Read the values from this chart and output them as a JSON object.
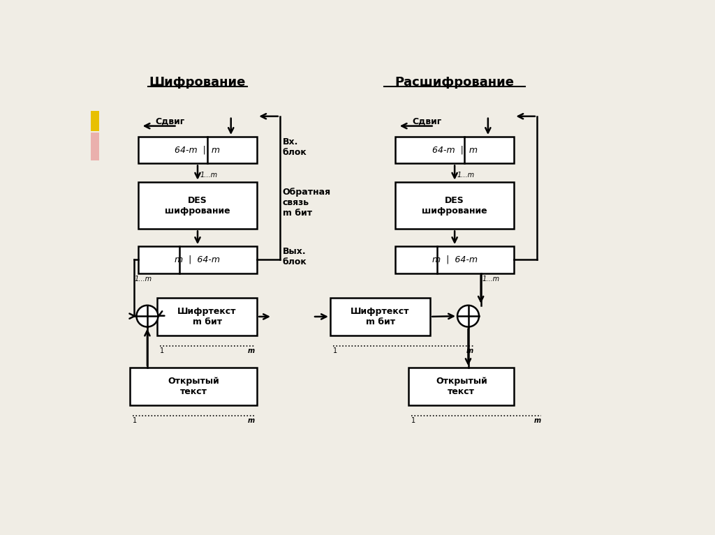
{
  "bg_color": "#f0ede5",
  "title_left": "Шифрование",
  "title_right": "Расшифрование",
  "left": {
    "shift_label": "Сдвиг",
    "box1_label": "64-m  |  m",
    "box2_label": "DES\nшифрование",
    "box3_label": "m  |  64-m",
    "box4_label": "Шифртекст\nm бит",
    "box5_label": "Открытый\nтекст",
    "feedback_label": "Обратная\nсвязь\nm бит",
    "in_block_label": "Вх.\nблок",
    "out_block_label": "Вых.\nблок"
  },
  "right": {
    "shift_label": "Сдвиг",
    "box1_label": "64-m  |  m",
    "box2_label": "DES\nшифрование",
    "box3_label": "m  |  64-m",
    "box4_label": "Шифртекст\nm бит",
    "box5_label": "Открытый\nтекст"
  }
}
